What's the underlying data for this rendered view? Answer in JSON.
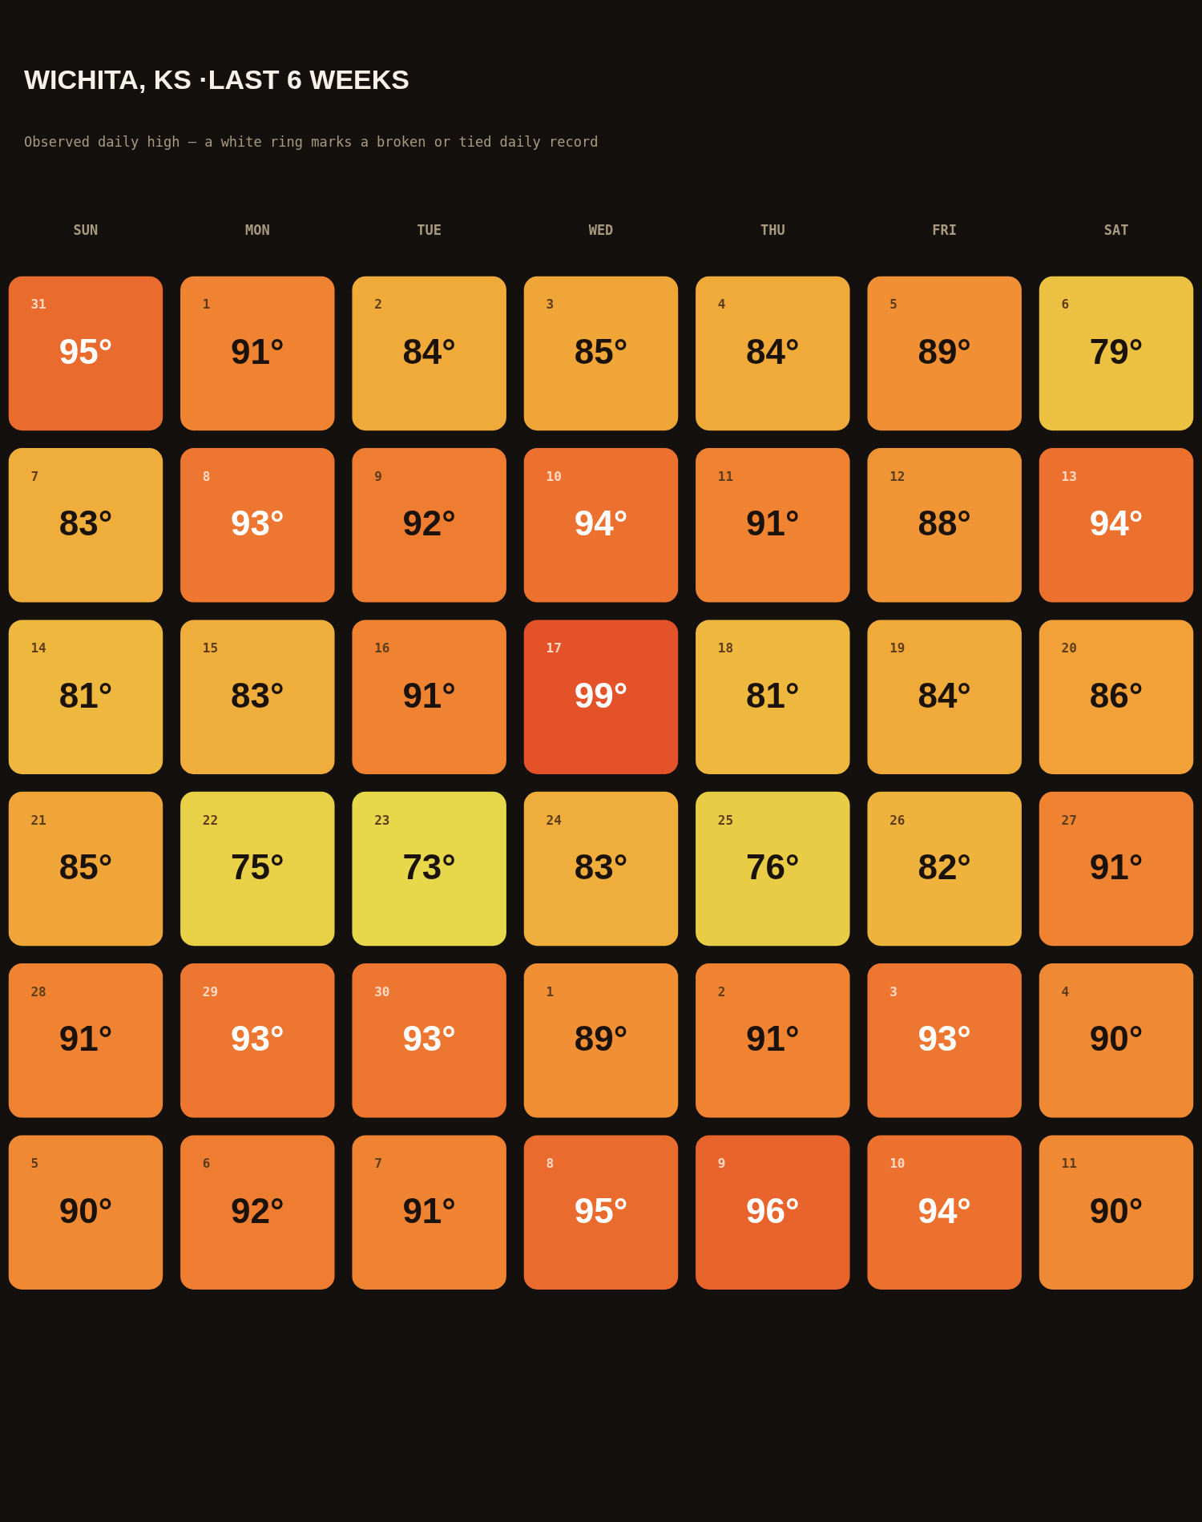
{
  "chart_data": {
    "type": "heatmap",
    "title": "WICHITA, KS ·LAST 6 WEEKS",
    "subtitle": "Observed daily high — a white ring marks a broken or tied daily record",
    "categories": [
      "SUN",
      "MON",
      "TUE",
      "WED",
      "THU",
      "FRI",
      "SAT"
    ],
    "y_categories": [
      null,
      null,
      null,
      null,
      null,
      null
    ],
    "cells": [
      [
        95,
        91,
        84,
        85,
        84,
        89,
        79
      ],
      [
        83,
        93,
        92,
        94,
        91,
        88,
        94
      ],
      [
        81,
        83,
        91,
        99,
        81,
        84,
        86
      ],
      [
        85,
        75,
        73,
        83,
        76,
        82,
        91
      ],
      [
        91,
        93,
        93,
        89,
        91,
        93,
        90
      ],
      [
        90,
        92,
        91,
        95,
        96,
        94,
        90
      ]
    ],
    "cell_labels": [
      [
        "95°",
        "91°",
        "84°",
        "85°",
        "84°",
        "89°",
        "79°"
      ],
      [
        "83°",
        "93°",
        "92°",
        "94°",
        "91°",
        "88°",
        "94°"
      ],
      [
        "81°",
        "83°",
        "91°",
        "99°",
        "81°",
        "84°",
        "86°"
      ],
      [
        "85°",
        "75°",
        "73°",
        "83°",
        "76°",
        "82°",
        "91°"
      ],
      [
        "91°",
        "93°",
        "93°",
        "89°",
        "91°",
        "93°",
        "90°"
      ],
      [
        "90°",
        "92°",
        "91°",
        "95°",
        "96°",
        "94°",
        "90°"
      ]
    ],
    "annotations": [
      "31",
      "1",
      "2",
      "3",
      "4",
      "5",
      "6",
      "7",
      "8",
      "9",
      "10",
      "11",
      "12",
      "13",
      "14",
      "15",
      "16",
      "17",
      "18",
      "19",
      "20",
      "21",
      "22",
      "23",
      "24",
      "25",
      "26",
      "27",
      "28",
      "29",
      "30",
      "1",
      "2",
      "3",
      "4",
      "5",
      "6",
      "7",
      "8",
      "9",
      "10",
      "11"
    ]
  }
}
